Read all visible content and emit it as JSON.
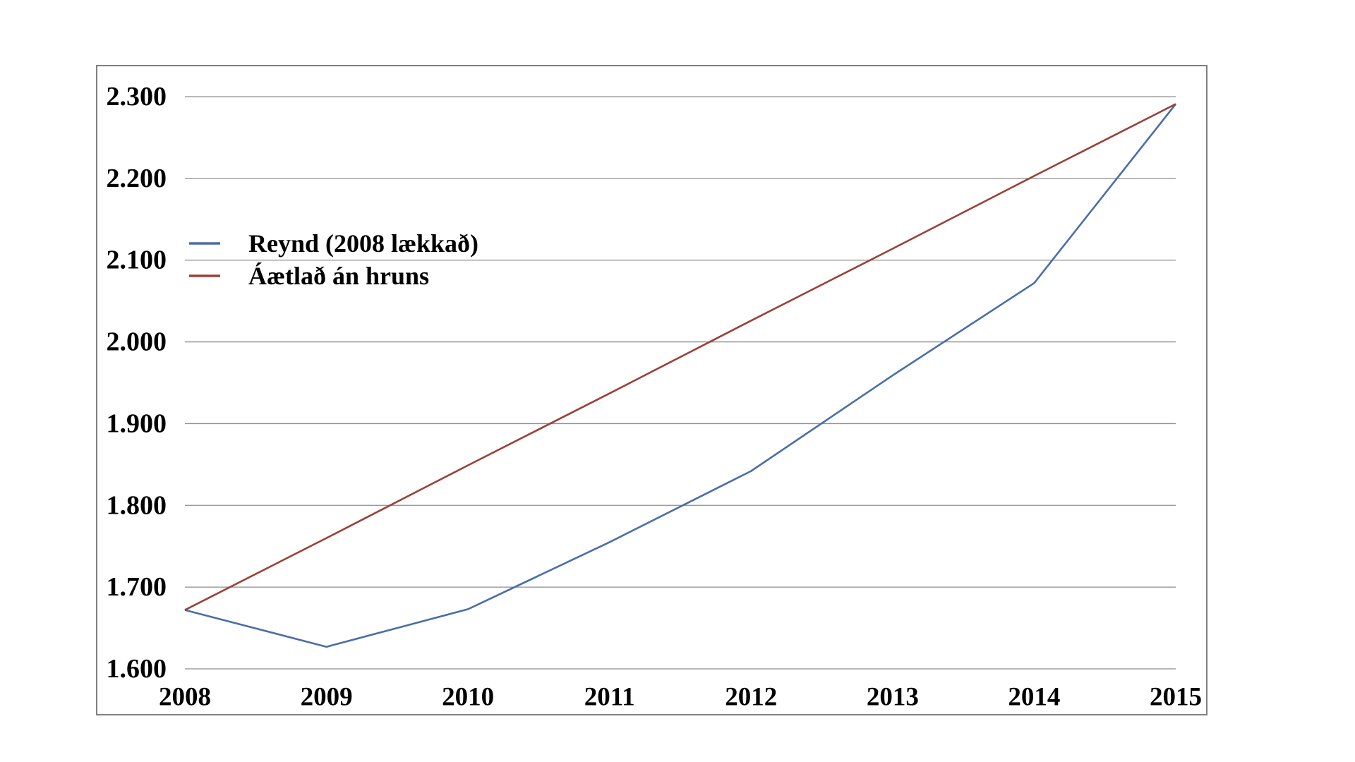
{
  "chart_data": {
    "type": "line",
    "x": [
      2008,
      2009,
      2010,
      2011,
      2012,
      2013,
      2014,
      2015
    ],
    "x_tick_labels": [
      "2008",
      "2009",
      "2010",
      "2011",
      "2012",
      "2013",
      "2014",
      "2015"
    ],
    "y_ticks": [
      1600,
      1700,
      1800,
      1900,
      2000,
      2100,
      2200,
      2300
    ],
    "y_tick_labels": [
      "1.600",
      "1.700",
      "1.800",
      "1.900",
      "2.000",
      "2.100",
      "2.200",
      "2.300"
    ],
    "ylim": [
      1600,
      2300
    ],
    "grid": true,
    "title": "",
    "xlabel": "",
    "ylabel": "",
    "legend_position": "upper-left-inside",
    "series": [
      {
        "name": "Reynd (2008 lækkað)",
        "color": "#4A6EA8",
        "values": [
          1672,
          1627,
          1673,
          1755,
          1842,
          1959,
          2072,
          2291
        ]
      },
      {
        "name": "Áætlað án hruns",
        "color": "#9A403A",
        "values": [
          1672,
          1760,
          1849,
          1937,
          2026,
          2114,
          2203,
          2291
        ]
      }
    ]
  },
  "legend": {
    "items": [
      {
        "label": "Reynd (2008 lækkað)",
        "color": "#4A6EA8"
      },
      {
        "label": "Áætlað án hruns",
        "color": "#9A403A"
      }
    ]
  },
  "colors": {
    "background": "#FFFFFF",
    "frame": "#808080",
    "grid": "#8C8C8C",
    "text": "#000000"
  }
}
